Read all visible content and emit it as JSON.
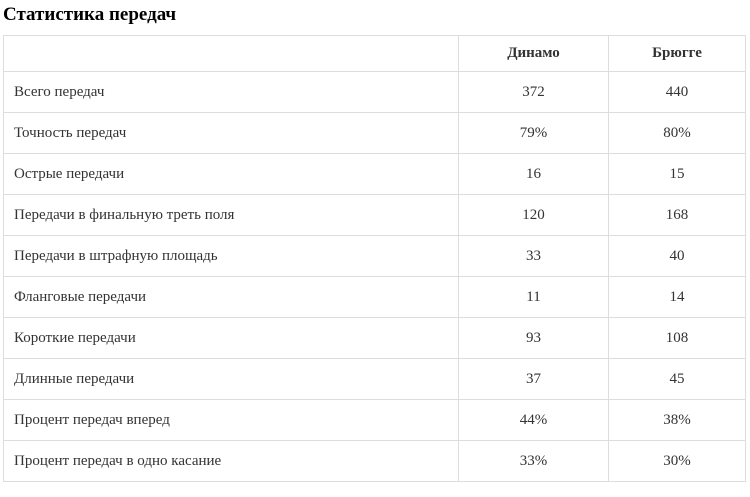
{
  "title": "Статистика передач",
  "colors": {
    "border": "#dddddd",
    "table_text": "#333333",
    "title_text": "#000000"
  },
  "chart_data": {
    "type": "table",
    "title": "Статистика передач",
    "columns": [
      "",
      "Динамо",
      "Брюгге"
    ],
    "rows": [
      [
        "Всего передач",
        "372",
        "440"
      ],
      [
        "Точность передач",
        "79%",
        "80%"
      ],
      [
        "Острые передачи",
        "16",
        "15"
      ],
      [
        "Передачи в финальную треть поля",
        "120",
        "168"
      ],
      [
        "Передачи в штрафную площадь",
        "33",
        "40"
      ],
      [
        "Фланговые передачи",
        "11",
        "14"
      ],
      [
        "Короткие передачи",
        "93",
        "108"
      ],
      [
        "Длинные передачи",
        "37",
        "45"
      ],
      [
        "Процент передач вперед",
        "44%",
        "38%"
      ],
      [
        "Процент передач в одно касание",
        "33%",
        "30%"
      ]
    ]
  },
  "table": {
    "headers": {
      "metric": "",
      "team1": "Динамо",
      "team2": "Брюгге"
    },
    "rows": [
      {
        "label": "Всего передач",
        "team1": "372",
        "team2": "440"
      },
      {
        "label": "Точность передач",
        "team1": "79%",
        "team2": "80%"
      },
      {
        "label": "Острые передачи",
        "team1": "16",
        "team2": "15"
      },
      {
        "label": "Передачи в финальную треть поля",
        "team1": "120",
        "team2": "168"
      },
      {
        "label": "Передачи в штрафную площадь",
        "team1": "33",
        "team2": "40"
      },
      {
        "label": "Фланговые передачи",
        "team1": "11",
        "team2": "14"
      },
      {
        "label": "Короткие передачи",
        "team1": "93",
        "team2": "108"
      },
      {
        "label": "Длинные передачи",
        "team1": "37",
        "team2": "45"
      },
      {
        "label": "Процент передач вперед",
        "team1": "44%",
        "team2": "38%"
      },
      {
        "label": "Процент передач в одно касание",
        "team1": "33%",
        "team2": "30%"
      }
    ]
  }
}
